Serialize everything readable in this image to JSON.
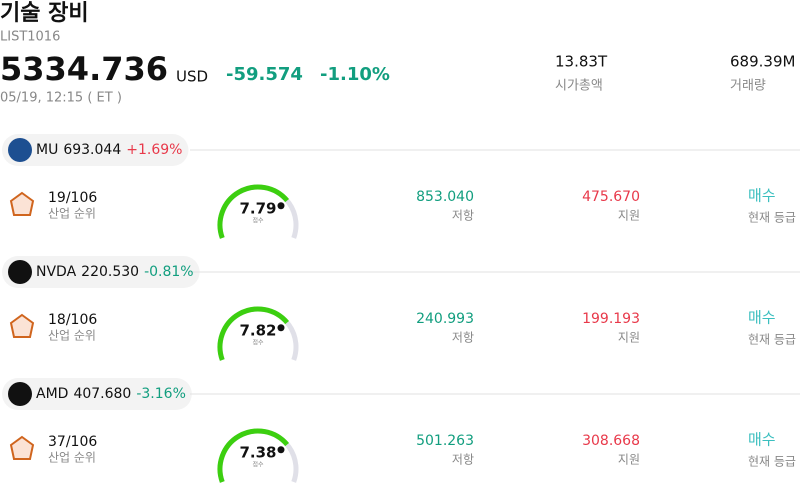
{
  "header": {
    "title": "기술 장비",
    "code": "LIST1016",
    "price": "5334.736",
    "currency": "USD",
    "change": "-59.574",
    "change_pct": "-1.10%",
    "time": "05/19, 12:15 ( ET )",
    "market_cap": "13.83T",
    "market_cap_label": "시가총액",
    "volume": "689.39M",
    "volume_label": "거래량"
  },
  "stocks": [
    {
      "ticker": "MU",
      "price": "693.044",
      "change": "+1.69%",
      "rank": "19/106",
      "rank_label": "산업 순위",
      "score": 7.79,
      "score_label": "점수",
      "resistance": "853.040",
      "resistance_label": "저항",
      "support": "475.670",
      "support_label": "지원",
      "rating": "매수",
      "rating_label": "현재 등급"
    },
    {
      "ticker": "NVDA",
      "price": "220.530",
      "change": "-0.81%",
      "rank": "18/106",
      "rank_label": "산업 순위",
      "score": 7.82,
      "score_label": "점수",
      "resistance": "240.993",
      "resistance_label": "저항",
      "support": "199.193",
      "support_label": "지원",
      "rating": "매수",
      "rating_label": "현재 등급"
    },
    {
      "ticker": "AMD",
      "price": "407.680",
      "change": "-3.16%",
      "rank": "37/106",
      "rank_label": "산업 순위",
      "score": 7.38,
      "score_label": "점수",
      "resistance": "501.263",
      "resistance_label": "저항",
      "support": "308.668",
      "support_label": "지원",
      "rating": "매수",
      "rating_label": "현재 등급"
    }
  ]
}
